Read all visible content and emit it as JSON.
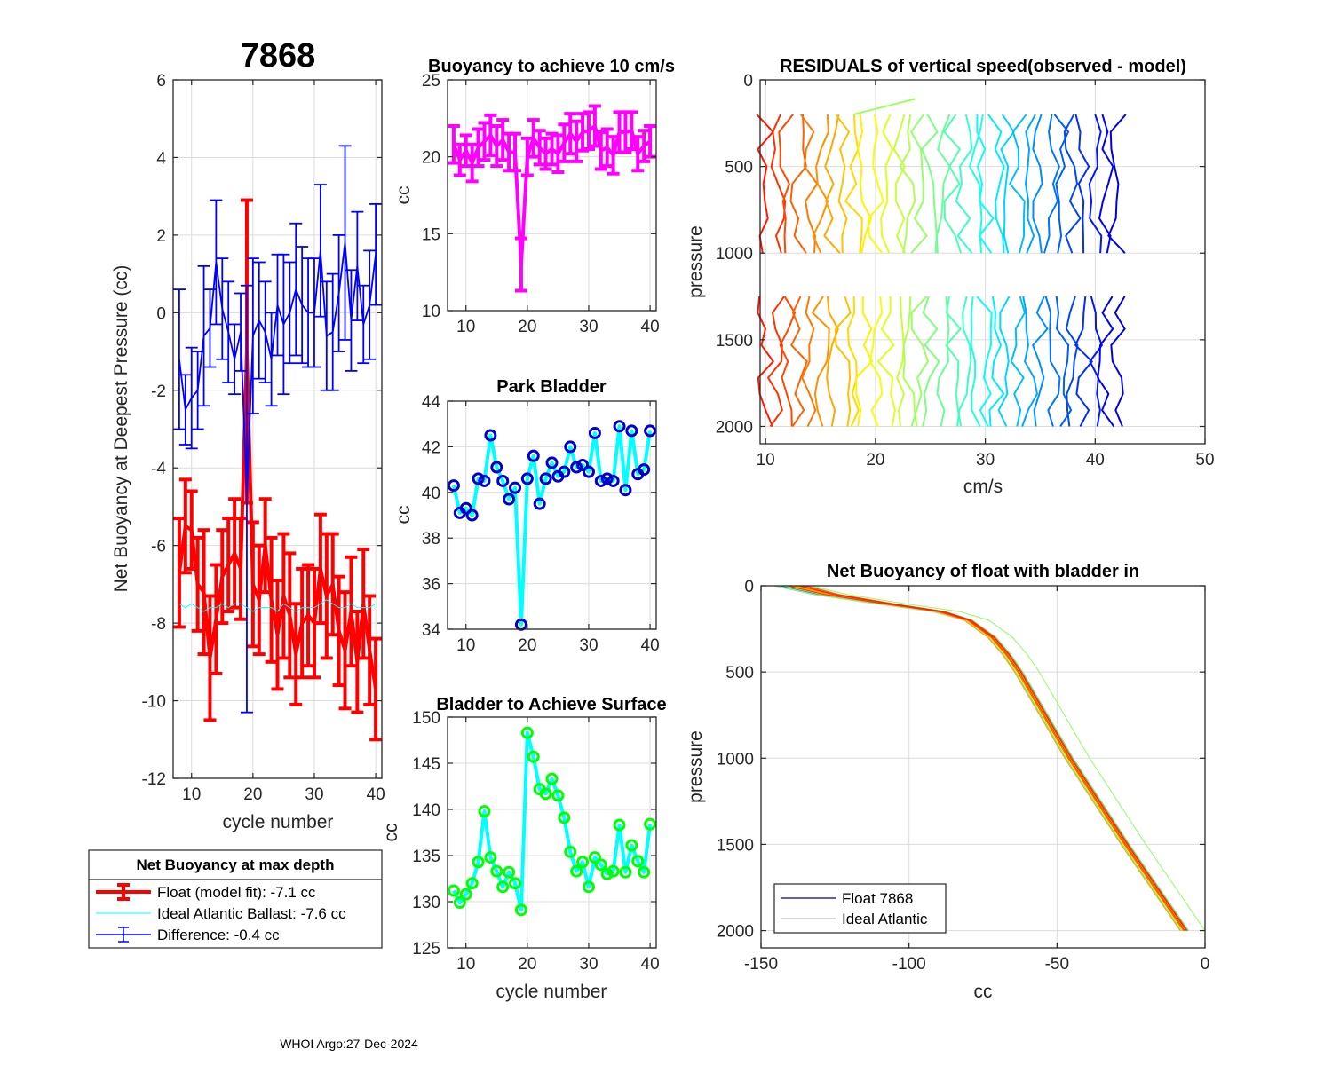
{
  "page": {
    "float_id": "7868",
    "footer": "WHOI Argo:27-Dec-2024"
  },
  "chart_data": [
    {
      "id": "net_buoyancy_deepest",
      "type": "line",
      "title": "7868",
      "xlabel": "cycle number",
      "ylabel": "Net Buoyancy at Deepest Pressure (cc)",
      "xlim": [
        7,
        41
      ],
      "ylim": [
        -12,
        6
      ],
      "xticks": [
        10,
        20,
        30,
        40
      ],
      "yticks": [
        -12,
        -10,
        -8,
        -6,
        -4,
        -2,
        0,
        2,
        4,
        6
      ],
      "grid": true,
      "x": [
        8,
        9,
        10,
        11,
        12,
        13,
        14,
        15,
        16,
        17,
        18,
        19,
        20,
        21,
        22,
        23,
        24,
        25,
        26,
        27,
        28,
        29,
        30,
        31,
        32,
        33,
        34,
        35,
        36,
        37,
        38,
        39,
        40
      ],
      "series": [
        {
          "name": "Float (model fit)",
          "color": "#ff0000",
          "values": [
            -6.7,
            -5.5,
            -5.6,
            -7.0,
            -7.2,
            -8.9,
            -7.9,
            -6.8,
            -6.5,
            -6.2,
            -6.6,
            -1.0,
            -7.0,
            -7.4,
            -6.0,
            -7.4,
            -8.3,
            -7.3,
            -7.8,
            -8.8,
            -8.0,
            -7.8,
            -8.0,
            -6.6,
            -7.3,
            -7.0,
            -8.2,
            -8.7,
            -7.7,
            -9.0,
            -7.5,
            -8.7,
            -9.7
          ],
          "err": [
            1.4,
            1.2,
            1.0,
            1.2,
            1.6,
            1.6,
            1.4,
            1.2,
            1.2,
            1.4,
            1.3,
            3.9,
            1.6,
            1.4,
            1.2,
            1.6,
            1.4,
            1.6,
            1.6,
            1.3,
            1.4,
            1.3,
            1.4,
            1.4,
            1.6,
            1.3,
            1.4,
            1.5,
            1.4,
            1.3,
            1.4,
            1.4,
            1.3
          ]
        },
        {
          "name": "Ideal Atlantic Ballast",
          "color": "#00ffff",
          "values": [
            -7.5,
            -7.6,
            -7.5,
            -7.6,
            -7.7,
            -7.6,
            -7.6,
            -7.5,
            -7.6,
            -7.5,
            -7.5,
            -7.6,
            -7.7,
            -7.6,
            -7.6,
            -7.6,
            -7.7,
            -7.5,
            -7.6,
            -7.7,
            -7.6,
            -7.6,
            -7.6,
            -7.5,
            -7.4,
            -7.5,
            -7.6,
            -7.6,
            -7.5,
            -7.6,
            -7.6,
            -7.6,
            -7.5
          ]
        },
        {
          "name": "Difference",
          "color": "#0000ff",
          "values": [
            -1.2,
            -2.5,
            -2.2,
            -2.0,
            -0.6,
            -0.4,
            1.3,
            0.1,
            -0.5,
            -1.2,
            -0.5,
            -4.8,
            -0.6,
            -0.2,
            -0.5,
            -1.2,
            0.2,
            -0.3,
            0.0,
            0.6,
            0.2,
            0.0,
            0.0,
            1.6,
            -0.6,
            -0.5,
            0.5,
            1.8,
            -0.2,
            1.2,
            -0.3,
            0.2,
            1.5
          ],
          "err": [
            1.8,
            0.9,
            1.3,
            1.0,
            1.8,
            1.0,
            1.6,
            1.3,
            1.3,
            0.9,
            1.0,
            5.5,
            2.0,
            1.5,
            1.3,
            1.2,
            1.3,
            1.8,
            1.3,
            1.7,
            1.5,
            1.4,
            1.4,
            1.7,
            1.4,
            1.5,
            1.5,
            2.5,
            1.3,
            1.4,
            1.0,
            1.4,
            1.3
          ]
        }
      ],
      "legend": {
        "title": "Net Buoyancy at max depth",
        "entries": [
          "Float (model fit):  -7.1 cc",
          "Ideal Atlantic Ballast:  -7.6 cc",
          "Difference:  -0.4 cc"
        ],
        "placement": "below"
      }
    },
    {
      "id": "buoyancy_10cms",
      "type": "line",
      "title": "Buoyancy to achieve 10 cm/s",
      "xlabel": "",
      "ylabel": "cc",
      "xlim": [
        7,
        41
      ],
      "ylim": [
        10,
        25
      ],
      "xticks": [
        10,
        20,
        30,
        40
      ],
      "yticks": [
        10,
        15,
        20,
        25
      ],
      "grid": true,
      "color": "#ff00ff",
      "x": [
        8,
        9,
        10,
        11,
        12,
        13,
        14,
        15,
        16,
        17,
        18,
        19,
        20,
        21,
        22,
        23,
        24,
        25,
        26,
        27,
        28,
        29,
        30,
        31,
        32,
        33,
        34,
        35,
        36,
        37,
        38,
        39,
        40
      ],
      "values": [
        20.8,
        19.8,
        20.4,
        19.6,
        20.6,
        21.0,
        21.4,
        20.7,
        21.1,
        20.3,
        20.3,
        13.0,
        20.0,
        21.2,
        20.6,
        20.2,
        20.5,
        20.2,
        20.9,
        21.5,
        21.0,
        21.6,
        21.7,
        22.0,
        20.4,
        20.6,
        20.1,
        21.6,
        21.6,
        21.7,
        20.2,
        20.7,
        21.0
      ],
      "err": [
        1.2,
        1.0,
        1.0,
        1.2,
        1.2,
        1.2,
        1.3,
        1.3,
        1.3,
        1.2,
        1.2,
        1.7,
        1.2,
        1.2,
        1.1,
        1.0,
        1.0,
        1.2,
        1.2,
        1.3,
        1.3,
        1.2,
        1.2,
        1.3,
        1.2,
        1.2,
        1.2,
        1.3,
        1.3,
        1.2,
        1.1,
        1.0,
        1.0
      ]
    },
    {
      "id": "park_bladder",
      "type": "line",
      "title": "Park Bladder",
      "xlabel": "",
      "ylabel": "cc",
      "xlim": [
        7,
        41
      ],
      "ylim": [
        34,
        44
      ],
      "xticks": [
        10,
        20,
        30,
        40
      ],
      "yticks": [
        34,
        36,
        38,
        40,
        42,
        44
      ],
      "grid": true,
      "line_color": "#00ffff",
      "marker_color": "#0000cd",
      "x": [
        8,
        9,
        10,
        11,
        12,
        13,
        14,
        15,
        16,
        17,
        18,
        19,
        20,
        21,
        22,
        23,
        24,
        25,
        26,
        27,
        28,
        29,
        30,
        31,
        32,
        33,
        34,
        35,
        36,
        37,
        38,
        39,
        40
      ],
      "values": [
        40.3,
        39.1,
        39.3,
        39.0,
        40.6,
        40.5,
        42.5,
        41.1,
        40.5,
        39.7,
        40.2,
        34.2,
        40.6,
        41.6,
        39.5,
        40.6,
        41.3,
        40.7,
        40.9,
        42.0,
        41.1,
        41.2,
        40.9,
        42.6,
        40.5,
        40.6,
        40.5,
        42.9,
        40.1,
        42.7,
        40.8,
        41.0,
        42.7
      ]
    },
    {
      "id": "bladder_surface",
      "type": "line",
      "title": "Bladder to Achieve Surface",
      "xlabel": "cycle number",
      "ylabel": "cc",
      "xlim": [
        7,
        41
      ],
      "ylim": [
        125,
        150
      ],
      "xticks": [
        10,
        20,
        30,
        40
      ],
      "yticks": [
        125,
        130,
        135,
        140,
        145,
        150
      ],
      "grid": true,
      "line_color": "#00ffff",
      "marker_color": "#00ff00",
      "x": [
        8,
        9,
        10,
        11,
        12,
        13,
        14,
        15,
        16,
        17,
        18,
        19,
        20,
        21,
        22,
        23,
        24,
        25,
        26,
        27,
        28,
        29,
        30,
        31,
        32,
        33,
        34,
        35,
        36,
        37,
        38,
        39,
        40
      ],
      "values": [
        131.2,
        129.9,
        130.8,
        132.0,
        134.3,
        139.8,
        134.8,
        133.3,
        131.6,
        133.2,
        132.0,
        129.1,
        148.3,
        145.7,
        142.2,
        141.7,
        143.3,
        141.5,
        139.1,
        135.4,
        133.3,
        134.3,
        131.6,
        134.8,
        134.0,
        133.0,
        133.3,
        138.3,
        133.2,
        136.1,
        134.4,
        133.2,
        138.4
      ]
    },
    {
      "id": "residuals",
      "type": "line",
      "title": "RESIDUALS of vertical speed(observed - model)",
      "xlabel": "cm/s",
      "ylabel": "pressure",
      "xlim": [
        9.5,
        50
      ],
      "ylim": [
        0,
        2100
      ],
      "y_reversed": true,
      "xticks": [
        10,
        20,
        30,
        40,
        50
      ],
      "yticks": [
        0,
        500,
        1000,
        1500,
        2000
      ],
      "grid": true,
      "colormap": "jet",
      "note": "33 profiles, each offset by cycle; upper segment 200-1000 dbar, lower segment 1250-2000 dbar",
      "offsets": [
        10.0,
        11.0,
        12.0,
        13.0,
        14.0,
        15.0,
        16.0,
        17.0,
        18.0,
        19.0,
        20.0,
        21.0,
        22.0,
        23.0,
        24.0,
        25.0,
        26.0,
        27.0,
        28.0,
        29.0,
        30.0,
        31.0,
        32.0,
        33.0,
        34.0,
        35.0,
        36.0,
        37.0,
        38.0,
        39.0,
        40.0,
        41.0,
        42.0
      ],
      "outlier": {
        "cycle": 19,
        "from": [
          18.0,
          200
        ],
        "to": [
          23.6,
          110
        ]
      }
    },
    {
      "id": "net_buoyancy_profile",
      "type": "line",
      "title": "Net Buoyancy of float with bladder in",
      "xlabel": "cc",
      "ylabel": "pressure",
      "xlim": [
        -150,
        0
      ],
      "ylim": [
        0,
        2100
      ],
      "y_reversed": true,
      "xticks": [
        -150,
        -100,
        -50,
        0
      ],
      "yticks": [
        0,
        500,
        1000,
        1500,
        2000
      ],
      "grid": true,
      "legend": {
        "entries": [
          "Float 7868",
          "Ideal Atlantic"
        ],
        "placement": "bottom-left"
      },
      "profile_shape": {
        "pressure": [
          0,
          50,
          100,
          150,
          200,
          300,
          400,
          500,
          1000,
          1500,
          2000
        ],
        "cc": [
          -140,
          -128,
          -110,
          -90,
          -80,
          -72,
          -67,
          -63,
          -46,
          -27,
          -7
        ]
      }
    }
  ]
}
